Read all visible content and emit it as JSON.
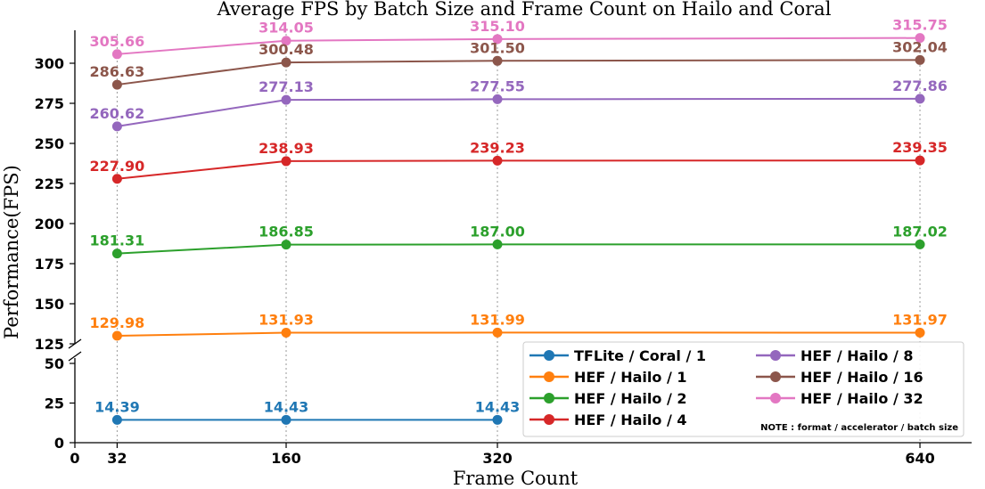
{
  "chart_data": {
    "type": "line",
    "title": "Average FPS by Batch Size and Frame Count on Hailo and Coral",
    "xlabel": "Frame Count",
    "ylabel": "Performance(FPS)",
    "x": [
      32,
      160,
      320,
      640
    ],
    "x_ticks": [
      "0",
      "32",
      "160",
      "320",
      "640"
    ],
    "y_ticks_lower": [
      "0",
      "25",
      "50"
    ],
    "y_ticks_upper": [
      "125",
      "150",
      "175",
      "200",
      "225",
      "250",
      "275",
      "300"
    ],
    "ylim_lower": [
      0,
      50
    ],
    "ylim_upper": [
      125,
      320
    ],
    "axis_break": true,
    "grid": "vertical dotted at data x values",
    "legend_position": "lower-right",
    "legend_note": "NOTE : format / accelerator / batch size",
    "series": [
      {
        "name": "TFLite / Coral / 1",
        "color": "#1f77b4",
        "x": [
          32,
          160,
          320
        ],
        "values": [
          14.39,
          14.43,
          14.43
        ],
        "labels": [
          "14.39",
          "14.43",
          "14.43"
        ]
      },
      {
        "name": "HEF / Hailo / 1",
        "color": "#ff7f0e",
        "x": [
          32,
          160,
          320,
          640
        ],
        "values": [
          129.98,
          131.93,
          131.99,
          131.97
        ],
        "labels": [
          "129.98",
          "131.93",
          "131.99",
          "131.97"
        ]
      },
      {
        "name": "HEF / Hailo / 2",
        "color": "#2ca02c",
        "x": [
          32,
          160,
          320,
          640
        ],
        "values": [
          181.31,
          186.85,
          187.0,
          187.02
        ],
        "labels": [
          "181.31",
          "186.85",
          "187.00",
          "187.02"
        ]
      },
      {
        "name": "HEF / Hailo / 4",
        "color": "#d62728",
        "x": [
          32,
          160,
          320,
          640
        ],
        "values": [
          227.9,
          238.93,
          239.23,
          239.35
        ],
        "labels": [
          "227.90",
          "238.93",
          "239.23",
          "239.35"
        ]
      },
      {
        "name": "HEF / Hailo / 8",
        "color": "#9467bd",
        "x": [
          32,
          160,
          320,
          640
        ],
        "values": [
          260.62,
          277.13,
          277.55,
          277.86
        ],
        "labels": [
          "260.62",
          "277.13",
          "277.55",
          "277.86"
        ]
      },
      {
        "name": "HEF / Hailo / 16",
        "color": "#8c564b",
        "x": [
          32,
          160,
          320,
          640
        ],
        "values": [
          286.63,
          300.48,
          301.5,
          302.04
        ],
        "labels": [
          "286.63",
          "300.48",
          "301.50",
          "302.04"
        ]
      },
      {
        "name": "HEF / Hailo / 32",
        "color": "#e377c2",
        "x": [
          32,
          160,
          320,
          640
        ],
        "values": [
          305.66,
          314.05,
          315.1,
          315.75
        ],
        "labels": [
          "305.66",
          "314.05",
          "315.10",
          "315.75"
        ]
      }
    ]
  }
}
